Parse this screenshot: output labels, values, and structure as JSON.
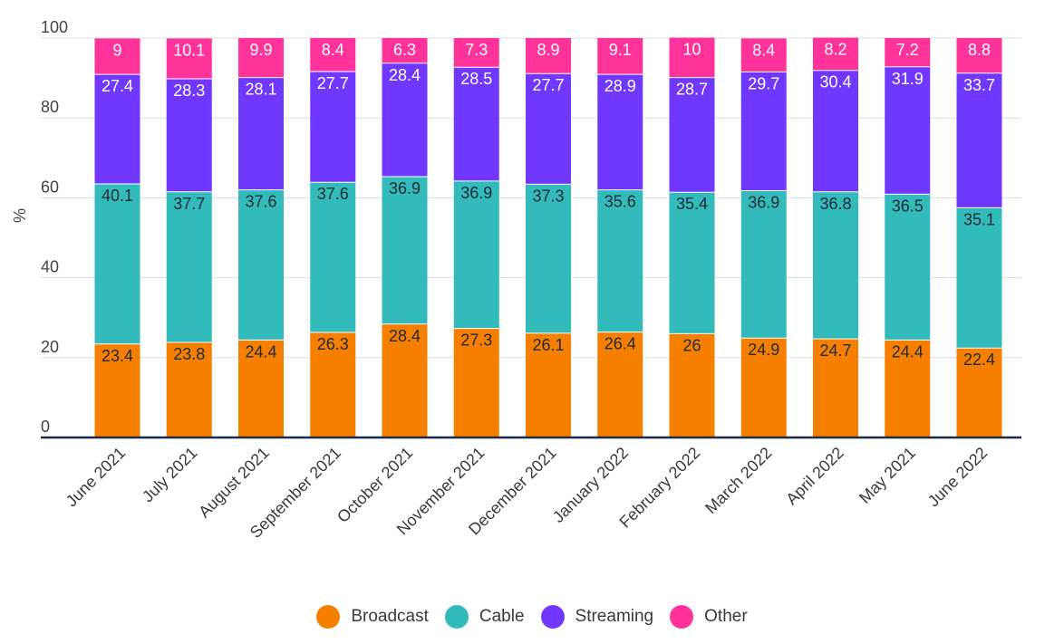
{
  "chart_data": {
    "type": "bar",
    "stacked": true,
    "title": "",
    "xlabel": "",
    "ylabel": "%",
    "ylim": [
      0,
      100
    ],
    "yticks": [
      0,
      20,
      40,
      60,
      80,
      100
    ],
    "grid": true,
    "legend_position": "bottom-center",
    "categories": [
      "June 2021",
      "July 2021",
      "August 2021",
      "September 2021",
      "October 2021",
      "November 2021",
      "December 2021",
      "January 2022",
      "February 2022",
      "March 2022",
      "April 2022",
      "May 2021",
      "June 2022"
    ],
    "series": [
      {
        "name": "Broadcast",
        "color": "#F77F00",
        "label_color": "#1f2a36",
        "values": [
          23.4,
          23.8,
          24.4,
          26.3,
          28.4,
          27.3,
          26.1,
          26.4,
          26,
          24.9,
          24.7,
          24.4,
          22.4
        ]
      },
      {
        "name": "Cable",
        "color": "#33BBBB",
        "label_color": "#1f2a36",
        "values": [
          40.1,
          37.7,
          37.6,
          37.6,
          36.9,
          36.9,
          37.3,
          35.6,
          35.4,
          36.9,
          36.8,
          36.5,
          35.1
        ]
      },
      {
        "name": "Streaming",
        "color": "#7038FF",
        "label_color": "#ffffff",
        "values": [
          27.4,
          28.3,
          28.1,
          27.7,
          28.4,
          28.5,
          27.7,
          28.9,
          28.7,
          29.7,
          30.4,
          31.9,
          33.7
        ]
      },
      {
        "name": "Other",
        "color": "#FF3399",
        "label_color": "#ffffff",
        "values": [
          9,
          10.1,
          9.9,
          8.4,
          6.3,
          7.3,
          8.9,
          9.1,
          10,
          8.4,
          8.2,
          7.2,
          8.8
        ]
      }
    ]
  }
}
